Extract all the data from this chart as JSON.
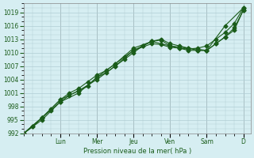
{
  "title": "",
  "xlabel": "Pression niveau de la mer( hPa )",
  "ylabel": "",
  "bg_color": "#d6eef2",
  "grid_color": "#b0cdd4",
  "line_color": "#1a5c1a",
  "ylim": [
    992,
    1021
  ],
  "yticks": [
    992,
    995,
    998,
    1001,
    1004,
    1007,
    1010,
    1013,
    1016,
    1019
  ],
  "day_labels": [
    "Lun",
    "Mer",
    "Jeu",
    "Ven",
    "Sam",
    "D"
  ],
  "day_positions": [
    1.0,
    2.0,
    3.0,
    4.0,
    5.0,
    6.0
  ],
  "line1_x": [
    0.0,
    0.25,
    0.5,
    0.75,
    1.0,
    1.25,
    1.5,
    1.75,
    2.0,
    2.25,
    2.5,
    2.75,
    3.0,
    3.25,
    3.5,
    3.75,
    4.0,
    4.25,
    4.5,
    4.75,
    5.0,
    5.25,
    5.5,
    5.75,
    6.0
  ],
  "line1_y": [
    992,
    993.5,
    995.5,
    997.5,
    999.5,
    1001,
    1002,
    1003.5,
    1005,
    1006,
    1007.5,
    1009,
    1010.5,
    1011.5,
    1012.5,
    1013,
    1012,
    1011.5,
    1011,
    1010.5,
    1010.5,
    1012,
    1013.5,
    1015,
    1019.5
  ],
  "line2_x": [
    0.0,
    0.25,
    0.5,
    0.75,
    1.0,
    1.25,
    1.5,
    1.75,
    2.0,
    2.25,
    2.5,
    2.75,
    3.0,
    3.25,
    3.5,
    3.75,
    4.0,
    4.25,
    4.5,
    4.75,
    5.0,
    5.25,
    5.5,
    5.75,
    6.0
  ],
  "line2_y": [
    992,
    993.5,
    995.0,
    997.0,
    999.0,
    1000.5,
    1001.5,
    1002.5,
    1004.5,
    1005.5,
    1007.0,
    1008.5,
    1010.0,
    1011.5,
    1012.5,
    1012.8,
    1011.5,
    1011.0,
    1010.5,
    1010.5,
    1010.5,
    1012.0,
    1013.5,
    1015.5,
    1019.5
  ],
  "line3_x": [
    0.0,
    0.5,
    1.0,
    1.5,
    2.0,
    2.5,
    3.0,
    3.5,
    4.0,
    4.5,
    5.0,
    5.5,
    6.0
  ],
  "line3_y": [
    992,
    995.5,
    999.0,
    1001.0,
    1004.5,
    1007.5,
    1011.0,
    1012.5,
    1011.5,
    1011.0,
    1010.5,
    1016.0,
    1020.0
  ],
  "line4_x": [
    0.0,
    0.5,
    1.0,
    1.5,
    2.0,
    2.5,
    3.0,
    3.5,
    3.75,
    4.0,
    4.25,
    4.5,
    4.75,
    5.0,
    5.25,
    5.5,
    5.75,
    6.0
  ],
  "line4_y": [
    992,
    995.5,
    999.5,
    1001.5,
    1004.0,
    1007.0,
    1010.5,
    1012.0,
    1011.8,
    1011.2,
    1011.0,
    1010.8,
    1011.0,
    1011.5,
    1013.0,
    1014.5,
    1016.5,
    1020.0
  ]
}
